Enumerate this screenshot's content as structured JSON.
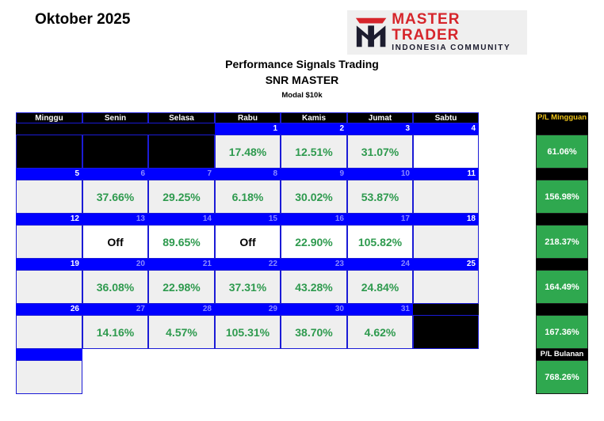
{
  "month": "Oktober 2025",
  "logo": {
    "main": "MASTER TRADER",
    "sub": "INDONESIA COMMUNITY",
    "icon": "mt-logo-icon"
  },
  "title": "Performance Signals Trading",
  "subtitle": "SNR MASTER",
  "capital": "Modal $10k",
  "colors": {
    "header_blue": "#0000ff",
    "green_value": "#2e9a4e",
    "pl_green": "#2fa84f",
    "gold": "#f0c419"
  },
  "days": [
    "Minggu",
    "Senin",
    "Selasa",
    "Rabu",
    "Kamis",
    "Jumat",
    "Sabtu"
  ],
  "weekly_header": "P/L Mingguan",
  "monthly_header": "P/L Bulanan",
  "weeks": [
    {
      "dates": [
        "",
        "",
        "",
        "1",
        "2",
        "3",
        "4"
      ],
      "values": [
        "",
        "",
        "",
        "17.48%",
        "12.51%",
        "31.07%",
        ""
      ],
      "weekly": "61.06%"
    },
    {
      "dates": [
        "5",
        "6",
        "7",
        "8",
        "9",
        "10",
        "11"
      ],
      "values": [
        "",
        "37.66%",
        "29.25%",
        "6.18%",
        "30.02%",
        "53.87%",
        ""
      ],
      "weekly": "156.98%"
    },
    {
      "dates": [
        "12",
        "13",
        "14",
        "15",
        "16",
        "17",
        "18"
      ],
      "values": [
        "",
        "Off",
        "89.65%",
        "Off",
        "22.90%",
        "105.82%",
        ""
      ],
      "weekly": "218.37%"
    },
    {
      "dates": [
        "19",
        "20",
        "21",
        "22",
        "23",
        "24",
        "25"
      ],
      "values": [
        "",
        "36.08%",
        "22.98%",
        "37.31%",
        "43.28%",
        "24.84%",
        ""
      ],
      "weekly": "164.49%"
    },
    {
      "dates": [
        "26",
        "27",
        "28",
        "29",
        "30",
        "31",
        ""
      ],
      "values": [
        "",
        "14.16%",
        "4.57%",
        "105.31%",
        "38.70%",
        "4.62%",
        ""
      ],
      "weekly": "167.36%"
    }
  ],
  "monthly": "768.26%"
}
